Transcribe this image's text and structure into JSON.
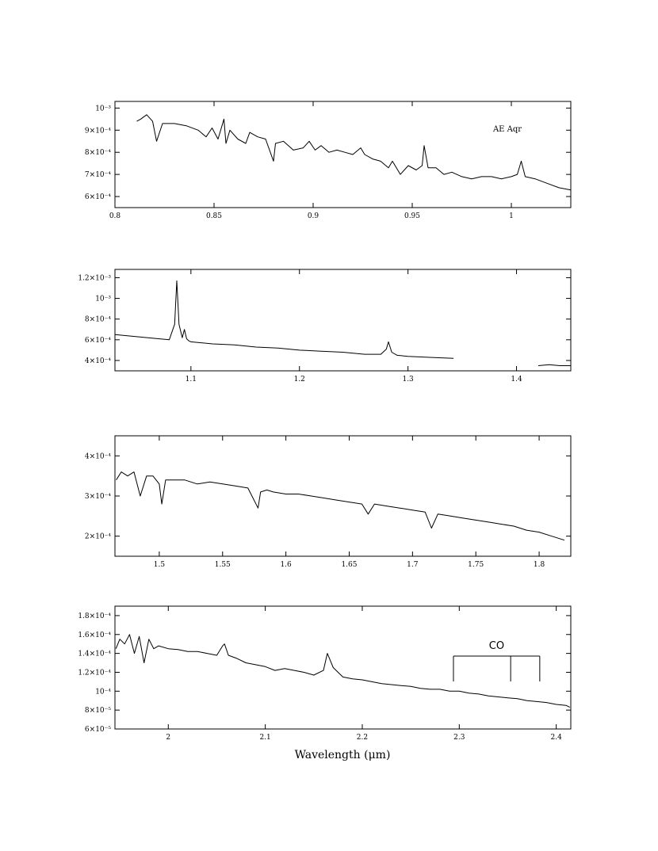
{
  "xlabel": "Wavelength (μm)",
  "chart_data": [
    {
      "type": "line",
      "xlim": [
        0.8,
        1.03
      ],
      "ylim": [
        0.00055,
        0.00103
      ],
      "x_ticks": [
        0.8,
        0.85,
        0.9,
        0.95,
        1.0
      ],
      "x_tick_labels": [
        "0.8",
        "0.85",
        "0.9",
        "0.95",
        "1"
      ],
      "y_ticks": [
        0.0006,
        0.0007,
        0.0008,
        0.0009,
        0.001
      ],
      "y_tick_labels": [
        "6×10⁻⁴",
        "7×10⁻⁴",
        "8×10⁻⁴",
        "9×10⁻⁴",
        "10⁻³"
      ],
      "annotation": "AE Aqr",
      "series": [
        {
          "x": [
            0.811,
            0.813,
            0.816,
            0.819,
            0.821,
            0.824,
            0.83,
            0.836,
            0.842,
            0.846,
            0.849,
            0.852,
            0.855,
            0.856,
            0.858,
            0.862,
            0.866,
            0.868,
            0.872,
            0.876,
            0.88,
            0.881,
            0.885,
            0.89,
            0.895,
            0.898,
            0.901,
            0.904,
            0.908,
            0.912,
            0.916,
            0.92,
            0.924,
            0.926,
            0.93,
            0.934,
            0.938,
            0.94,
            0.944,
            0.948,
            0.952,
            0.955,
            0.956,
            0.958,
            0.962,
            0.966,
            0.97,
            0.975,
            0.98,
            0.985,
            0.99,
            0.995,
            1.0,
            1.003,
            1.005,
            1.007,
            1.012,
            1.018,
            1.024,
            1.03
          ],
          "y": [
            0.00094,
            0.00095,
            0.00097,
            0.00094,
            0.00085,
            0.00093,
            0.00093,
            0.00092,
            0.0009,
            0.00087,
            0.00091,
            0.00086,
            0.00095,
            0.00084,
            0.0009,
            0.00086,
            0.00084,
            0.00089,
            0.00087,
            0.00086,
            0.00076,
            0.00084,
            0.00085,
            0.00081,
            0.00082,
            0.00085,
            0.00081,
            0.00083,
            0.0008,
            0.00081,
            0.0008,
            0.00079,
            0.00082,
            0.00079,
            0.00077,
            0.00076,
            0.00073,
            0.00076,
            0.0007,
            0.00074,
            0.00072,
            0.00074,
            0.00083,
            0.00073,
            0.00073,
            0.0007,
            0.00071,
            0.00069,
            0.00068,
            0.00069,
            0.00069,
            0.00068,
            0.00069,
            0.0007,
            0.00076,
            0.00069,
            0.00068,
            0.00066,
            0.00064,
            0.00063
          ]
        }
      ]
    },
    {
      "type": "line",
      "xlim": [
        1.03,
        1.45
      ],
      "ylim": [
        0.0003,
        0.00128
      ],
      "x_ticks": [
        1.1,
        1.2,
        1.3,
        1.4
      ],
      "x_tick_labels": [
        "1.1",
        "1.2",
        "1.3",
        "1.4"
      ],
      "y_ticks": [
        0.0004,
        0.0006,
        0.0008,
        0.001,
        0.0012
      ],
      "y_tick_labels": [
        "4×10⁻⁴",
        "6×10⁻⁴",
        "8×10⁻⁴",
        "10⁻³",
        "1.2×10⁻³"
      ],
      "series": [
        {
          "x": [
            1.03,
            1.05,
            1.07,
            1.08,
            1.085,
            1.087,
            1.089,
            1.092,
            1.094,
            1.096,
            1.098,
            1.1,
            1.12,
            1.14,
            1.16,
            1.18,
            1.2,
            1.22,
            1.24,
            1.26,
            1.275,
            1.28,
            1.282,
            1.285,
            1.29,
            1.3,
            1.32,
            1.342
          ],
          "y": [
            0.00065,
            0.00063,
            0.00061,
            0.0006,
            0.00075,
            0.00117,
            0.00075,
            0.00062,
            0.0007,
            0.00061,
            0.00059,
            0.00058,
            0.00056,
            0.00055,
            0.00053,
            0.00052,
            0.0005,
            0.00049,
            0.00048,
            0.00046,
            0.00046,
            0.00051,
            0.00058,
            0.00048,
            0.00045,
            0.00044,
            0.00043,
            0.00042
          ]
        },
        {
          "x": [
            1.42,
            1.43,
            1.44,
            1.45
          ],
          "y": [
            0.00035,
            0.00036,
            0.00035,
            0.00035
          ]
        }
      ]
    },
    {
      "type": "line",
      "xlim": [
        1.465,
        1.825
      ],
      "ylim": [
        0.00015,
        0.00045
      ],
      "x_ticks": [
        1.5,
        1.55,
        1.6,
        1.65,
        1.7,
        1.75,
        1.8
      ],
      "x_tick_labels": [
        "1.5",
        "1.55",
        "1.6",
        "1.65",
        "1.7",
        "1.75",
        "1.8"
      ],
      "y_ticks": [
        0.0002,
        0.0003,
        0.0004
      ],
      "y_tick_labels": [
        "2×10⁻⁴",
        "3×10⁻⁴",
        "4×10⁻⁴"
      ],
      "series": [
        {
          "x": [
            1.466,
            1.47,
            1.475,
            1.48,
            1.485,
            1.49,
            1.495,
            1.5,
            1.502,
            1.505,
            1.51,
            1.52,
            1.53,
            1.54,
            1.55,
            1.56,
            1.57,
            1.578,
            1.58,
            1.585,
            1.59,
            1.6,
            1.61,
            1.62,
            1.63,
            1.64,
            1.65,
            1.66,
            1.665,
            1.67,
            1.68,
            1.69,
            1.7,
            1.71,
            1.715,
            1.72,
            1.73,
            1.74,
            1.75,
            1.76,
            1.77,
            1.78,
            1.79,
            1.8,
            1.81,
            1.82
          ],
          "y": [
            0.00034,
            0.00036,
            0.00035,
            0.00036,
            0.0003,
            0.00035,
            0.00035,
            0.00033,
            0.00028,
            0.00034,
            0.00034,
            0.00034,
            0.00033,
            0.000335,
            0.00033,
            0.000325,
            0.00032,
            0.00027,
            0.00031,
            0.000315,
            0.00031,
            0.000305,
            0.000305,
            0.0003,
            0.000295,
            0.00029,
            0.000285,
            0.00028,
            0.000255,
            0.00028,
            0.000275,
            0.00027,
            0.000265,
            0.00026,
            0.00022,
            0.000255,
            0.00025,
            0.000245,
            0.00024,
            0.000235,
            0.00023,
            0.000225,
            0.000215,
            0.00021,
            0.0002,
            0.00019
          ]
        }
      ]
    },
    {
      "type": "line",
      "xlim": [
        1.945,
        2.415
      ],
      "ylim": [
        6e-05,
        0.00019
      ],
      "x_ticks": [
        2.0,
        2.1,
        2.2,
        2.3,
        2.4
      ],
      "x_tick_labels": [
        "2",
        "2.1",
        "2.2",
        "2.3",
        "2.4"
      ],
      "y_ticks": [
        6e-05,
        8e-05,
        0.0001,
        0.00012,
        0.00014,
        0.00016,
        0.00018
      ],
      "y_tick_labels": [
        "6×10⁻⁵",
        "8×10⁻⁵",
        "10⁻⁴",
        "1.2×10⁻⁴",
        "1.4×10⁻⁴",
        "1.6×10⁻⁴",
        "1.8×10⁻⁴"
      ],
      "annotation": "CO",
      "co_lines": [
        2.294,
        2.353,
        2.383
      ],
      "series": [
        {
          "x": [
            1.946,
            1.95,
            1.955,
            1.96,
            1.965,
            1.97,
            1.975,
            1.98,
            1.985,
            1.99,
            2.0,
            2.01,
            2.02,
            2.03,
            2.04,
            2.05,
            2.056,
            2.058,
            2.062,
            2.07,
            2.08,
            2.09,
            2.1,
            2.11,
            2.12,
            2.13,
            2.14,
            2.15,
            2.16,
            2.164,
            2.166,
            2.17,
            2.18,
            2.19,
            2.2,
            2.21,
            2.22,
            2.23,
            2.24,
            2.25,
            2.26,
            2.27,
            2.28,
            2.29,
            2.3,
            2.31,
            2.32,
            2.33,
            2.34,
            2.35,
            2.36,
            2.37,
            2.38,
            2.39,
            2.4,
            2.41,
            2.414
          ],
          "y": [
            0.000145,
            0.000155,
            0.00015,
            0.00016,
            0.00014,
            0.000158,
            0.00013,
            0.000155,
            0.000145,
            0.000148,
            0.000145,
            0.000144,
            0.000142,
            0.000142,
            0.00014,
            0.000138,
            0.000148,
            0.00015,
            0.000138,
            0.000135,
            0.00013,
            0.000128,
            0.000126,
            0.000122,
            0.000124,
            0.000122,
            0.00012,
            0.000117,
            0.000122,
            0.00014,
            0.000135,
            0.000125,
            0.000115,
            0.000113,
            0.000112,
            0.00011,
            0.000108,
            0.000107,
            0.000106,
            0.000105,
            0.000103,
            0.000102,
            0.000102,
            0.0001,
            0.0001,
            9.8e-05,
            9.7e-05,
            9.5e-05,
            9.4e-05,
            9.3e-05,
            9.2e-05,
            9e-05,
            8.9e-05,
            8.8e-05,
            8.6e-05,
            8.5e-05,
            8.3e-05
          ]
        }
      ]
    }
  ]
}
